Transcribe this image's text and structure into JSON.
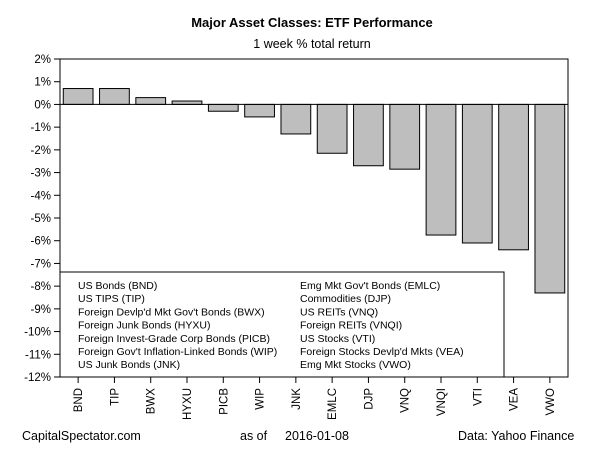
{
  "chart_data": {
    "type": "bar",
    "title": "Major Asset Classes: ETF Performance",
    "subtitle": "1 week % total return",
    "categories": [
      "BND",
      "TIP",
      "BWX",
      "HYXU",
      "PICB",
      "WIP",
      "JNK",
      "EMLC",
      "DJP",
      "VNQ",
      "VNQI",
      "VTI",
      "VEA",
      "VWO"
    ],
    "values": [
      0.7,
      0.7,
      0.3,
      0.15,
      -0.3,
      -0.55,
      -1.3,
      -2.15,
      -2.7,
      -2.85,
      -5.75,
      -6.1,
      -6.4,
      -8.3
    ],
    "ylim": [
      -12,
      2
    ],
    "yticks": [
      "2%",
      "1%",
      "0%",
      "-1%",
      "-2%",
      "-3%",
      "-4%",
      "-5%",
      "-6%",
      "-7%",
      "-8%",
      "-9%",
      "-10%",
      "-11%",
      "-12%"
    ],
    "bar_color": "#bebebe",
    "legend": {
      "placement": "bottom-left",
      "left_column": [
        "US Bonds (BND)",
        "US TIPS (TIP)",
        "Foreign Devlp'd Mkt Gov't Bonds (BWX)",
        "Foreign Junk Bonds (HYXU)",
        "Foreign Invest-Grade Corp Bonds (PICB)",
        "Foreign Gov't Inflation-Linked Bonds (WIP)",
        "US Junk Bonds (JNK)"
      ],
      "right_column": [
        "Emg Mkt Gov't Bonds (EMLC)",
        "Commodities (DJP)",
        "US REITs (VNQ)",
        "Foreign REITs (VNQI)",
        "US Stocks (VTI)",
        "Foreign Stocks Devlp'd Mkts (VEA)",
        "Emg Mkt Stocks (VWO)"
      ]
    }
  },
  "footer": {
    "source_left": "CapitalSpectator.com",
    "as_of_label": "as of",
    "date": "2016-01-08",
    "data_source": "Data: Yahoo Finance"
  }
}
